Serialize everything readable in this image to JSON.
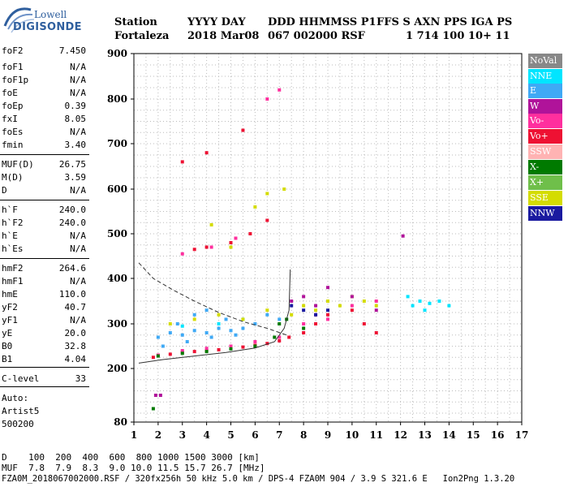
{
  "logo": {
    "top": "Lowell",
    "bottom": "DIGISONDE"
  },
  "header": {
    "line1": [
      "Station",
      "YYYY DAY",
      "DDD HHMMSS P1",
      "FFS S AXN PPS IGA PS"
    ],
    "line2": [
      "Fortaleza",
      "2018 Mar08",
      "067 002000 RSF",
      "1 714 100 10+ 11"
    ]
  },
  "params": [
    {
      "label": "foF2",
      "value": "7.450"
    },
    {
      "label": "foF1",
      "value": "N/A"
    },
    {
      "label": "foF1p",
      "value": "N/A"
    },
    {
      "label": "foE",
      "value": "N/A"
    },
    {
      "label": "foEp",
      "value": "0.39"
    },
    {
      "label": "fxI",
      "value": "8.05"
    },
    {
      "label": "foEs",
      "value": "N/A"
    },
    {
      "label": "fmin",
      "value": "3.40"
    },
    {
      "label": "MUF(D)",
      "value": "26.75"
    },
    {
      "label": "M(D)",
      "value": "3.59"
    },
    {
      "label": "D",
      "value": "N/A"
    },
    {
      "label": "h`F",
      "value": "240.0"
    },
    {
      "label": "h`F2",
      "value": "240.0"
    },
    {
      "label": "h`E",
      "value": "N/A"
    },
    {
      "label": "h`Es",
      "value": "N/A"
    },
    {
      "label": "hmF2",
      "value": "264.6"
    },
    {
      "label": "hmF1",
      "value": "N/A"
    },
    {
      "label": "hmE",
      "value": "110.0"
    },
    {
      "label": "yF2",
      "value": "40.7"
    },
    {
      "label": "yF1",
      "value": "N/A"
    },
    {
      "label": "yE",
      "value": "20.0"
    },
    {
      "label": "B0",
      "value": "32.8"
    },
    {
      "label": "B1",
      "value": "4.04"
    },
    {
      "label": "C-level",
      "value": "33"
    }
  ],
  "auto": {
    "line1": "Auto:",
    "line2": "Artist5",
    "line3": "500200"
  },
  "legend": [
    {
      "label": "NoVal",
      "color": "#888888"
    },
    {
      "label": "NNE",
      "color": "#00e5ff"
    },
    {
      "label": "E",
      "color": "#3fa9f5"
    },
    {
      "label": "W",
      "color": "#b0139a"
    },
    {
      "label": "Vo-",
      "color": "#ff2f9e"
    },
    {
      "label": "Vo+",
      "color": "#ee1133"
    },
    {
      "label": "SSW",
      "color": "#ffb3b3"
    },
    {
      "label": "X-",
      "color": "#007a00"
    },
    {
      "label": "X+",
      "color": "#6fbf4a"
    },
    {
      "label": "SSE",
      "color": "#d4dc00"
    },
    {
      "label": "NNW",
      "color": "#1a1aa0"
    }
  ],
  "chart_data": {
    "type": "scatter",
    "xlim": [
      1,
      17
    ],
    "ylim": [
      80,
      900
    ],
    "xticks": [
      "1",
      "2",
      "3",
      "4",
      "5",
      "6",
      "7",
      "8",
      "9",
      "10",
      "11",
      "12",
      "13",
      "14",
      "15",
      "16",
      "17"
    ],
    "yticks": [
      "80",
      "200",
      "300",
      "400",
      "500",
      "600",
      "700",
      "800",
      "900"
    ],
    "ytick_values": [
      80,
      200,
      300,
      400,
      500,
      600,
      700,
      800,
      900
    ],
    "grid": true,
    "series": [
      {
        "name": "E",
        "color": "#3fa9f5",
        "points": [
          [
            2.0,
            270
          ],
          [
            2.5,
            280
          ],
          [
            3.0,
            275
          ],
          [
            3.5,
            285
          ],
          [
            4.0,
            280
          ],
          [
            4.5,
            290
          ],
          [
            5.0,
            285
          ],
          [
            5.5,
            290
          ],
          [
            6.0,
            300
          ],
          [
            2.2,
            250
          ],
          [
            3.2,
            260
          ],
          [
            4.2,
            270
          ],
          [
            5.2,
            275
          ],
          [
            4.0,
            330
          ],
          [
            3.5,
            320
          ],
          [
            2.8,
            300
          ],
          [
            4.8,
            310
          ],
          [
            6.5,
            320
          ],
          [
            7.0,
            310
          ]
        ]
      },
      {
        "name": "NNE",
        "color": "#00e5ff",
        "points": [
          [
            12.5,
            340
          ],
          [
            12.8,
            350
          ],
          [
            13.0,
            330
          ],
          [
            13.2,
            345
          ],
          [
            13.6,
            350
          ],
          [
            14.0,
            340
          ],
          [
            12.3,
            360
          ],
          [
            3.0,
            295
          ],
          [
            4.5,
            300
          ],
          [
            5.5,
            310
          ]
        ]
      },
      {
        "name": "SSE",
        "color": "#d4dc00",
        "points": [
          [
            2.5,
            300
          ],
          [
            3.5,
            310
          ],
          [
            4.5,
            320
          ],
          [
            5.5,
            310
          ],
          [
            6.5,
            330
          ],
          [
            7.5,
            320
          ],
          [
            8.0,
            340
          ],
          [
            8.5,
            330
          ],
          [
            9.0,
            350
          ],
          [
            9.5,
            340
          ],
          [
            10.0,
            360
          ],
          [
            10.5,
            350
          ],
          [
            11.0,
            340
          ],
          [
            5.0,
            470
          ],
          [
            6.0,
            560
          ],
          [
            6.5,
            590
          ],
          [
            7.2,
            600
          ],
          [
            4.2,
            520
          ]
        ]
      },
      {
        "name": "Vo+",
        "color": "#ee1133",
        "points": [
          [
            1.8,
            225
          ],
          [
            2.5,
            232
          ],
          [
            3.0,
            236
          ],
          [
            3.5,
            238
          ],
          [
            4.0,
            240
          ],
          [
            4.5,
            242
          ],
          [
            5.0,
            245
          ],
          [
            5.5,
            248
          ],
          [
            6.0,
            252
          ],
          [
            6.5,
            256
          ],
          [
            7.0,
            262
          ],
          [
            7.4,
            270
          ],
          [
            8.0,
            280
          ],
          [
            8.5,
            300
          ],
          [
            9.0,
            320
          ],
          [
            10.0,
            330
          ],
          [
            10.5,
            300
          ],
          [
            11.0,
            280
          ],
          [
            3.5,
            465
          ],
          [
            4.0,
            470
          ],
          [
            5.0,
            480
          ],
          [
            5.8,
            500
          ],
          [
            6.5,
            530
          ],
          [
            3.0,
            660
          ],
          [
            4.0,
            680
          ],
          [
            5.5,
            730
          ]
        ]
      },
      {
        "name": "Vo-",
        "color": "#ff2f9e",
        "points": [
          [
            2.0,
            230
          ],
          [
            3.0,
            240
          ],
          [
            4.0,
            245
          ],
          [
            5.0,
            250
          ],
          [
            6.0,
            260
          ],
          [
            7.0,
            270
          ],
          [
            8.0,
            300
          ],
          [
            8.5,
            320
          ],
          [
            9.0,
            310
          ],
          [
            10.0,
            340
          ],
          [
            11.0,
            350
          ],
          [
            6.5,
            800
          ],
          [
            7.0,
            820
          ],
          [
            3.0,
            455
          ],
          [
            4.2,
            470
          ],
          [
            5.2,
            490
          ]
        ]
      },
      {
        "name": "W",
        "color": "#b0139a",
        "points": [
          [
            7.5,
            350
          ],
          [
            8.0,
            360
          ],
          [
            8.5,
            340
          ],
          [
            9.0,
            380
          ],
          [
            10.0,
            360
          ],
          [
            11.0,
            330
          ],
          [
            12.1,
            495
          ],
          [
            1.9,
            140
          ],
          [
            2.1,
            140
          ]
        ]
      },
      {
        "name": "X-",
        "color": "#007a00",
        "points": [
          [
            2.0,
            228
          ],
          [
            3.0,
            234
          ],
          [
            4.0,
            238
          ],
          [
            5.0,
            244
          ],
          [
            6.0,
            250
          ],
          [
            6.8,
            270
          ],
          [
            7.0,
            300
          ],
          [
            7.3,
            310
          ],
          [
            8.0,
            290
          ],
          [
            1.8,
            110
          ]
        ]
      },
      {
        "name": "NNW",
        "color": "#1a1aa0",
        "points": [
          [
            7.5,
            340
          ],
          [
            8.0,
            330
          ],
          [
            8.5,
            320
          ],
          [
            9.0,
            330
          ]
        ]
      }
    ]
  }
}
